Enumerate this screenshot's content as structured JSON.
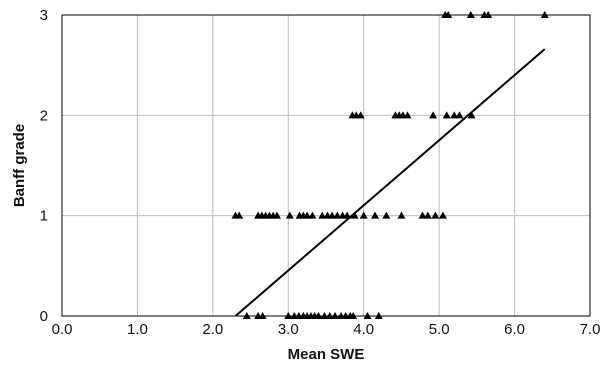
{
  "chart_data": {
    "type": "scatter",
    "title": "",
    "xlabel": "Mean SWE",
    "ylabel": "Banff grade",
    "xlim": [
      0,
      7
    ],
    "ylim": [
      0,
      3
    ],
    "x_ticks": [
      "0.0",
      "1.0",
      "2.0",
      "3.0",
      "4.0",
      "5.0",
      "6.0",
      "7.0"
    ],
    "y_ticks": [
      "0",
      "1",
      "2",
      "3"
    ],
    "grid": true,
    "legend": "none",
    "series": [
      {
        "marker": "triangle",
        "color": "#000000",
        "points": [
          {
            "x": 2.45,
            "y": 0
          },
          {
            "x": 2.6,
            "y": 0
          },
          {
            "x": 2.66,
            "y": 0
          },
          {
            "x": 3.0,
            "y": 0
          },
          {
            "x": 3.08,
            "y": 0
          },
          {
            "x": 3.14,
            "y": 0
          },
          {
            "x": 3.2,
            "y": 0
          },
          {
            "x": 3.25,
            "y": 0
          },
          {
            "x": 3.3,
            "y": 0
          },
          {
            "x": 3.35,
            "y": 0
          },
          {
            "x": 3.4,
            "y": 0
          },
          {
            "x": 3.48,
            "y": 0
          },
          {
            "x": 3.55,
            "y": 0
          },
          {
            "x": 3.62,
            "y": 0
          },
          {
            "x": 3.7,
            "y": 0
          },
          {
            "x": 3.76,
            "y": 0
          },
          {
            "x": 3.82,
            "y": 0
          },
          {
            "x": 3.86,
            "y": 0
          },
          {
            "x": 4.05,
            "y": 0
          },
          {
            "x": 4.2,
            "y": 0
          },
          {
            "x": 2.3,
            "y": 1
          },
          {
            "x": 2.35,
            "y": 1
          },
          {
            "x": 2.6,
            "y": 1
          },
          {
            "x": 2.65,
            "y": 1
          },
          {
            "x": 2.7,
            "y": 1
          },
          {
            "x": 2.75,
            "y": 1
          },
          {
            "x": 2.8,
            "y": 1
          },
          {
            "x": 2.85,
            "y": 1
          },
          {
            "x": 3.02,
            "y": 1
          },
          {
            "x": 3.15,
            "y": 1
          },
          {
            "x": 3.2,
            "y": 1
          },
          {
            "x": 3.25,
            "y": 1
          },
          {
            "x": 3.32,
            "y": 1
          },
          {
            "x": 3.45,
            "y": 1
          },
          {
            "x": 3.52,
            "y": 1
          },
          {
            "x": 3.58,
            "y": 1
          },
          {
            "x": 3.65,
            "y": 1
          },
          {
            "x": 3.72,
            "y": 1
          },
          {
            "x": 3.78,
            "y": 1
          },
          {
            "x": 3.88,
            "y": 1
          },
          {
            "x": 4.0,
            "y": 1
          },
          {
            "x": 4.15,
            "y": 1
          },
          {
            "x": 4.3,
            "y": 1
          },
          {
            "x": 4.5,
            "y": 1
          },
          {
            "x": 4.78,
            "y": 1
          },
          {
            "x": 4.85,
            "y": 1
          },
          {
            "x": 4.95,
            "y": 1
          },
          {
            "x": 5.05,
            "y": 1
          },
          {
            "x": 3.85,
            "y": 2
          },
          {
            "x": 3.9,
            "y": 2
          },
          {
            "x": 3.96,
            "y": 2
          },
          {
            "x": 4.42,
            "y": 2
          },
          {
            "x": 4.47,
            "y": 2
          },
          {
            "x": 4.52,
            "y": 2
          },
          {
            "x": 4.58,
            "y": 2
          },
          {
            "x": 4.92,
            "y": 2
          },
          {
            "x": 5.1,
            "y": 2
          },
          {
            "x": 5.2,
            "y": 2
          },
          {
            "x": 5.27,
            "y": 2
          },
          {
            "x": 5.43,
            "y": 2
          },
          {
            "x": 5.08,
            "y": 3
          },
          {
            "x": 5.12,
            "y": 3
          },
          {
            "x": 5.42,
            "y": 3
          },
          {
            "x": 5.6,
            "y": 3
          },
          {
            "x": 5.65,
            "y": 3
          },
          {
            "x": 6.4,
            "y": 3
          }
        ]
      }
    ],
    "trendline": {
      "type": "linear",
      "color": "#000000",
      "x": [
        2.3,
        6.4
      ],
      "y": [
        0,
        2.66
      ]
    }
  }
}
